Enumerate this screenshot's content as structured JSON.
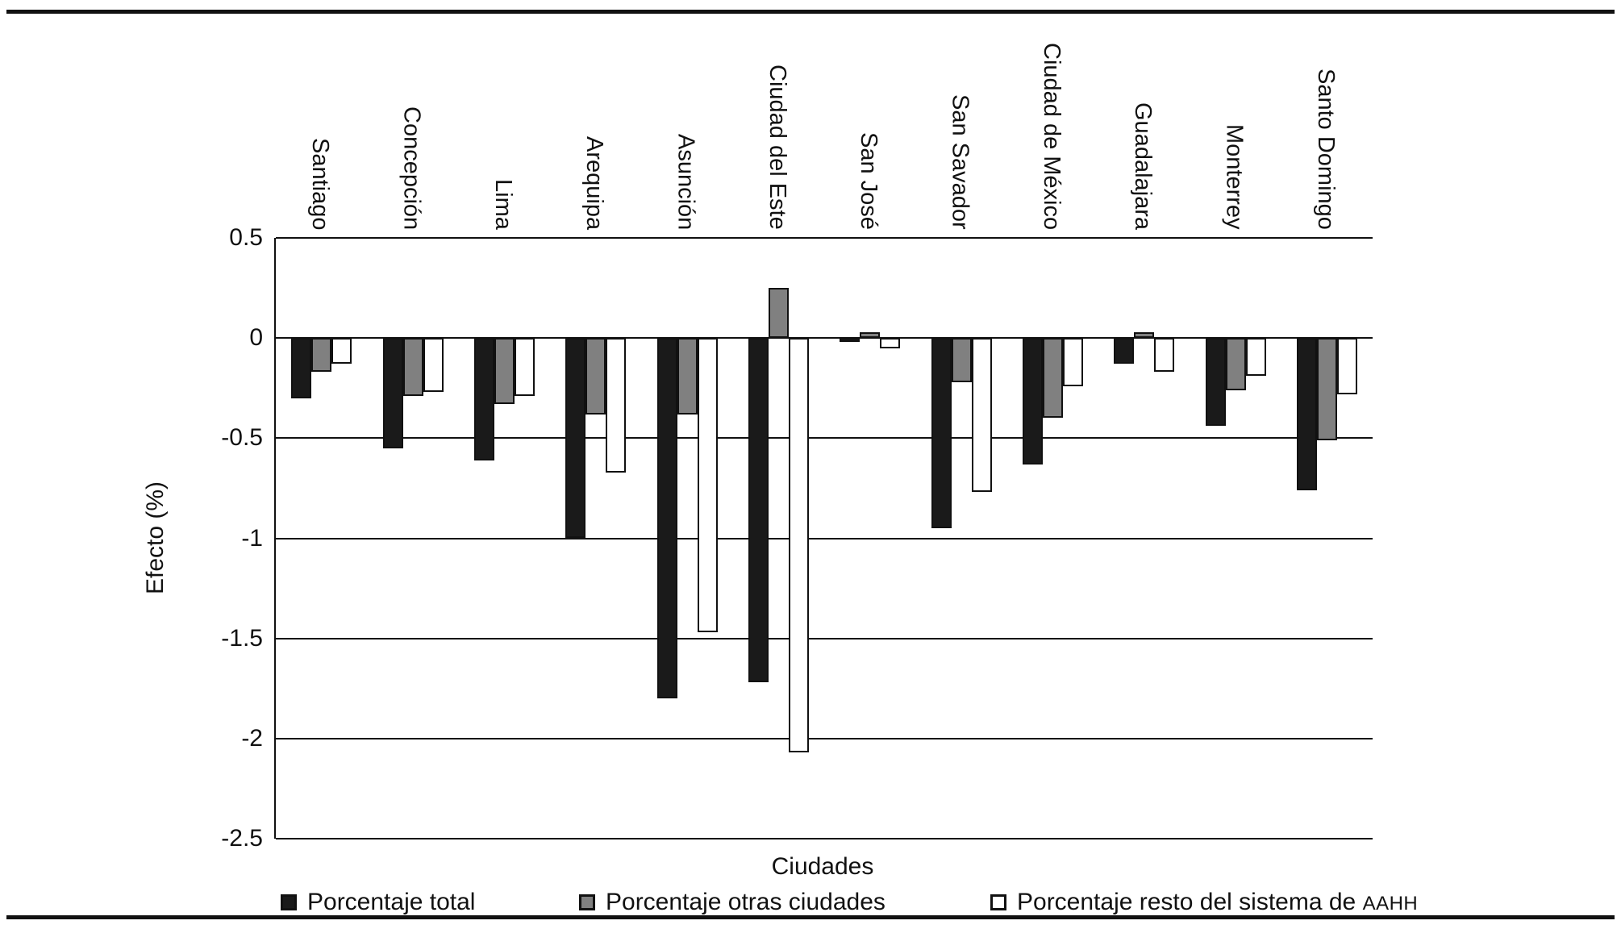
{
  "chart_data": {
    "type": "bar",
    "title": "",
    "xlabel": "Ciudades",
    "ylabel": "Efecto (%)",
    "ylim": [
      -2.5,
      0.5
    ],
    "grid": true,
    "legend_position": "bottom",
    "yticks": [
      {
        "label": "0.5",
        "value": 0.5
      },
      {
        "label": "0",
        "value": 0
      },
      {
        "label": "-0.5",
        "value": -0.5
      },
      {
        "label": "-1",
        "value": -1
      },
      {
        "label": "-1.5",
        "value": -1.5
      },
      {
        "label": "-2",
        "value": -2
      },
      {
        "label": "-2.5",
        "value": -2.5
      }
    ],
    "categories": [
      "Santiago",
      "Concepción",
      "Lima",
      "Arequipa",
      "Asunción",
      "Ciudad del Este",
      "San José",
      "San Savador",
      "Ciudad de México",
      "Guadalajara",
      "Monterrey",
      "Santo Domingo"
    ],
    "series": [
      {
        "name": "Porcentaje total",
        "color": "#1a1a1a",
        "values": [
          -0.3,
          -0.55,
          -0.61,
          -1.0,
          -1.8,
          -1.72,
          -0.02,
          -0.95,
          -0.63,
          -0.13,
          -0.44,
          -0.76
        ]
      },
      {
        "name": "Porcentaje otras ciudades",
        "color": "#808080",
        "values": [
          -0.17,
          -0.29,
          -0.33,
          -0.38,
          -0.38,
          0.25,
          0.03,
          -0.22,
          -0.4,
          0.03,
          -0.26,
          -0.51
        ]
      },
      {
        "name": "Porcentaje resto del sistema de AAHH",
        "color": "#ffffff",
        "values": [
          -0.13,
          -0.27,
          -0.29,
          -0.67,
          -1.47,
          -2.07,
          -0.05,
          -0.77,
          -0.24,
          -0.17,
          -0.19,
          -0.28
        ]
      }
    ],
    "legend": [
      {
        "label": "Porcentaje total",
        "label_small": "",
        "swatch": "#1a1a1a"
      },
      {
        "label": "Porcentaje otras ciudades",
        "label_small": "",
        "swatch": "#808080"
      },
      {
        "label": "Porcentaje resto del sistema de ",
        "label_small": "AAHH",
        "swatch": "#ffffff"
      }
    ]
  }
}
